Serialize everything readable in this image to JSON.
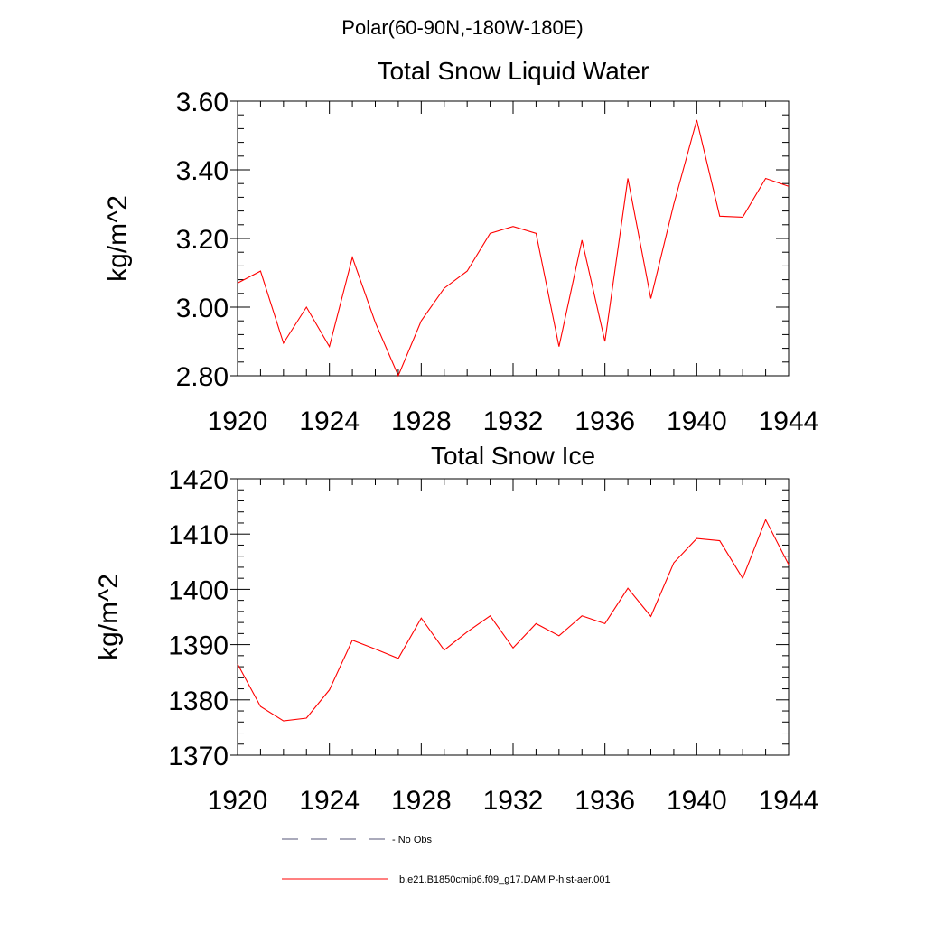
{
  "suptitle": "Polar(60-90N,-180W-180E)",
  "colors": {
    "series": "#ff0000",
    "axis": "#000000",
    "obs": "#555577"
  },
  "legend": {
    "items": [
      {
        "label": "- No Obs",
        "style": "dashed"
      },
      {
        "label": "b.e21.B1850cmip6.f09_g17.DAMIP-hist-aer.001",
        "style": "solid"
      }
    ]
  },
  "chart_data": [
    {
      "type": "line",
      "title": "Total Snow Liquid Water",
      "ylabel": "kg/m^2",
      "xlim": [
        1920,
        1944
      ],
      "ylim": [
        2.8,
        3.6
      ],
      "xticks": [
        "1920",
        "1924",
        "1928",
        "1932",
        "1936",
        "1940",
        "1944"
      ],
      "yticks": [
        "2.80",
        "3.00",
        "3.20",
        "3.40",
        "3.60"
      ],
      "x": [
        1920,
        1921,
        1922,
        1923,
        1924,
        1925,
        1926,
        1927,
        1928,
        1929,
        1930,
        1931,
        1932,
        1933,
        1934,
        1935,
        1936,
        1937,
        1938,
        1939,
        1940,
        1941,
        1942,
        1943,
        1944
      ],
      "series": [
        {
          "values": [
            3.07,
            3.105,
            2.895,
            3.0,
            2.885,
            3.145,
            2.955,
            2.8,
            2.96,
            3.055,
            3.105,
            3.215,
            3.235,
            3.215,
            2.885,
            3.195,
            2.9,
            3.375,
            3.025,
            3.3,
            3.545,
            3.265,
            3.262,
            3.375,
            3.352
          ]
        }
      ]
    },
    {
      "type": "line",
      "title": "Total Snow Ice",
      "ylabel": "kg/m^2",
      "xlim": [
        1920,
        1944
      ],
      "ylim": [
        1370,
        1420
      ],
      "xticks": [
        "1920",
        "1924",
        "1928",
        "1932",
        "1936",
        "1940",
        "1944"
      ],
      "yticks": [
        "1370",
        "1380",
        "1390",
        "1400",
        "1410",
        "1420"
      ],
      "x": [
        1920,
        1921,
        1922,
        1923,
        1924,
        1925,
        1926,
        1927,
        1928,
        1929,
        1930,
        1931,
        1932,
        1933,
        1934,
        1935,
        1936,
        1937,
        1938,
        1939,
        1940,
        1941,
        1942,
        1943,
        1944
      ],
      "series": [
        {
          "values": [
            1386.5,
            1378.8,
            1376.2,
            1376.7,
            1381.8,
            1390.8,
            1389.2,
            1387.5,
            1394.8,
            1389.0,
            1392.3,
            1395.2,
            1389.4,
            1393.8,
            1391.6,
            1395.2,
            1393.8,
            1400.2,
            1395.1,
            1404.8,
            1409.2,
            1408.8,
            1402.0,
            1412.6,
            1404.5
          ]
        }
      ]
    }
  ]
}
